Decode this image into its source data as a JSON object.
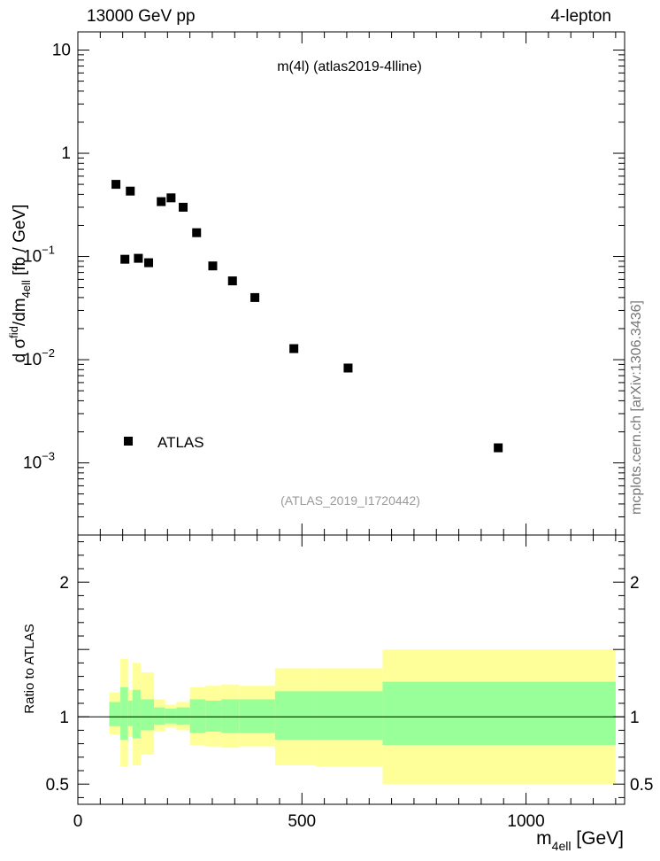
{
  "header": {
    "left": "13000 GeV pp",
    "right": "4-lepton"
  },
  "side_label": "mcplots.cern.ch [arXiv:1306.3436]",
  "chart_data": {
    "type": "scatter",
    "title": "m(4l) (atlas2019-4lline)",
    "analysis_ref": "(ATLAS_2019_I1720442)",
    "legend": [
      {
        "name": "ATLAS",
        "marker": "square",
        "color": "#000000"
      }
    ],
    "legend_position": "bottom-left",
    "main": {
      "ylabel_parts": {
        "d": "d σ",
        "fid_sup": "fid",
        "mid": "/dm",
        "sub": "4ell",
        "unit": " [fb / GeV]"
      },
      "yscale": "log",
      "ylim": [
        0.0002,
        15
      ],
      "yticks": [
        {
          "value": 10,
          "label": "10"
        },
        {
          "value": 1,
          "label": "1"
        },
        {
          "value": 0.1,
          "label": "10",
          "exp": "−1"
        },
        {
          "value": 0.01,
          "label": "10",
          "exp": "−2"
        },
        {
          "value": 0.001,
          "label": "10",
          "exp": "−3"
        }
      ],
      "series": [
        {
          "name": "ATLAS",
          "x": [
            85,
            105,
            117,
            135,
            158,
            186,
            208,
            235,
            265,
            301,
            345,
            395,
            482,
            603,
            938
          ],
          "y": [
            0.5,
            0.094,
            0.43,
            0.096,
            0.087,
            0.34,
            0.37,
            0.3,
            0.17,
            0.081,
            0.058,
            0.04,
            0.0128,
            0.0083,
            0.0014
          ]
        }
      ]
    },
    "ratio": {
      "ylabel": "Ratio to ATLAS",
      "ylim": [
        0.35,
        2.35
      ],
      "yticks": [
        {
          "value": 2,
          "label": "2"
        },
        {
          "value": 1,
          "label": "1"
        },
        {
          "value": 0.5,
          "label": "0.5"
        }
      ],
      "reference_line": 1,
      "bands": {
        "colors": {
          "inner": "#99ff99",
          "outer": "#ffff99"
        },
        "bins": [
          {
            "x0": 70,
            "x1": 95,
            "in_lo": 0.93,
            "in_hi": 1.11,
            "out_lo": 0.87,
            "out_hi": 1.18
          },
          {
            "x0": 95,
            "x1": 112,
            "in_lo": 0.83,
            "in_hi": 1.22,
            "out_lo": 0.63,
            "out_hi": 1.43
          },
          {
            "x0": 112,
            "x1": 122,
            "in_lo": 0.93,
            "in_hi": 1.12,
            "out_lo": 0.85,
            "out_hi": 1.2
          },
          {
            "x0": 122,
            "x1": 140,
            "in_lo": 0.84,
            "in_hi": 1.2,
            "out_lo": 0.64,
            "out_hi": 1.4
          },
          {
            "x0": 140,
            "x1": 170,
            "in_lo": 0.9,
            "in_hi": 1.13,
            "out_lo": 0.72,
            "out_hi": 1.33
          },
          {
            "x0": 170,
            "x1": 195,
            "in_lo": 0.94,
            "in_hi": 1.07,
            "out_lo": 0.89,
            "out_hi": 1.13
          },
          {
            "x0": 195,
            "x1": 220,
            "in_lo": 0.95,
            "in_hi": 1.06,
            "out_lo": 0.92,
            "out_hi": 1.09
          },
          {
            "x0": 220,
            "x1": 250,
            "in_lo": 0.94,
            "in_hi": 1.07,
            "out_lo": 0.9,
            "out_hi": 1.11
          },
          {
            "x0": 250,
            "x1": 285,
            "in_lo": 0.88,
            "in_hi": 1.13,
            "out_lo": 0.79,
            "out_hi": 1.22
          },
          {
            "x0": 285,
            "x1": 320,
            "in_lo": 0.89,
            "in_hi": 1.12,
            "out_lo": 0.78,
            "out_hi": 1.23
          },
          {
            "x0": 320,
            "x1": 360,
            "in_lo": 0.88,
            "in_hi": 1.13,
            "out_lo": 0.77,
            "out_hi": 1.24
          },
          {
            "x0": 360,
            "x1": 440,
            "in_lo": 0.88,
            "in_hi": 1.13,
            "out_lo": 0.78,
            "out_hi": 1.23
          },
          {
            "x0": 440,
            "x1": 530,
            "in_lo": 0.83,
            "in_hi": 1.19,
            "out_lo": 0.64,
            "out_hi": 1.36
          },
          {
            "x0": 530,
            "x1": 680,
            "in_lo": 0.83,
            "in_hi": 1.19,
            "out_lo": 0.63,
            "out_hi": 1.36
          },
          {
            "x0": 680,
            "x1": 1200,
            "in_lo": 0.79,
            "in_hi": 1.26,
            "out_lo": 0.5,
            "out_hi": 1.5
          }
        ]
      }
    },
    "x": {
      "xlim": [
        0,
        1220
      ],
      "xlabel_main": "m",
      "xlabel_sub": "4ell",
      "xlabel_unit": " [GeV]",
      "ticks": [
        {
          "value": 0,
          "label": "0"
        },
        {
          "value": 500,
          "label": "500"
        },
        {
          "value": 1000,
          "label": "1000"
        }
      ]
    }
  }
}
